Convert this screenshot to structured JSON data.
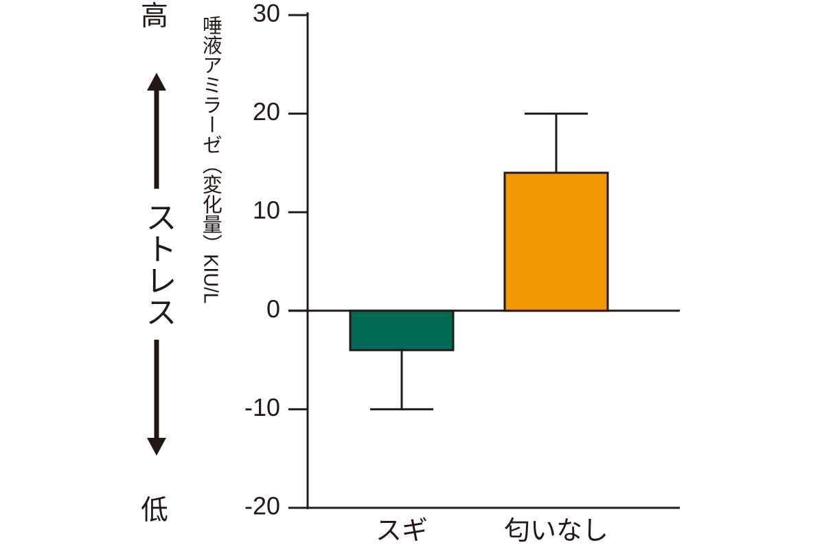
{
  "chart_data": {
    "type": "bar",
    "y_label": "唾液アミラーゼ（変化量）KIU/L",
    "annotations": {
      "high": "高",
      "middle": "ストレス",
      "low": "低"
    },
    "categories": [
      "スギ",
      "匂いなし"
    ],
    "values": [
      -4,
      14
    ],
    "errors": [
      6,
      6
    ],
    "colors": [
      "#006b54",
      "#f39800"
    ],
    "ylim": [
      -20,
      30
    ],
    "yticks": [
      -20,
      -10,
      0,
      10,
      20,
      30
    ]
  }
}
